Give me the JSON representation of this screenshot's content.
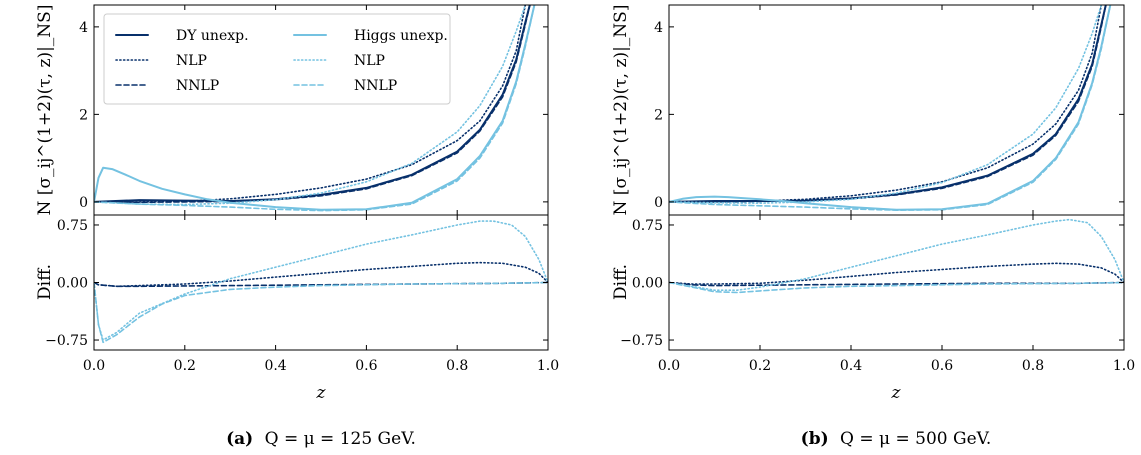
{
  "colors": {
    "dy": "#08306b",
    "higgs": "#74c2e1"
  },
  "legend": {
    "entries": [
      {
        "key": "dy_unexp",
        "label": "DY unexp.",
        "color": "dy",
        "style": "solid"
      },
      {
        "key": "dy_nlp",
        "label": "NLP",
        "color": "dy",
        "style": "dotted"
      },
      {
        "key": "dy_nnlp",
        "label": "NNLP",
        "color": "dy",
        "style": "dashed"
      },
      {
        "key": "h_unexp",
        "label": "Higgs unexp.",
        "color": "higgs",
        "style": "solid"
      },
      {
        "key": "h_nlp",
        "label": "NLP",
        "color": "higgs",
        "style": "dotted"
      },
      {
        "key": "h_nnlp",
        "label": "NNLP",
        "color": "higgs",
        "style": "dashed"
      }
    ],
    "placement": "top-left of panel (a)"
  },
  "chart_data": [
    {
      "panel": "a",
      "caption_label": "(a)",
      "caption_text": "Q = μ = 125 GeV.",
      "type": "line",
      "xlabel": "z",
      "top": {
        "ylabel": "N [σ_ij^(1+2)(τ, z)|_NS]",
        "ylim": [
          -0.3,
          4.5
        ],
        "yticks": [
          "0",
          "2",
          "4"
        ],
        "ytick_values": [
          0,
          2,
          4
        ],
        "series": [
          {
            "key": "dy_unexp",
            "x": [
              0.0,
              0.1,
              0.2,
              0.3,
              0.4,
              0.5,
              0.6,
              0.7,
              0.8,
              0.85,
              0.9,
              0.93,
              0.95,
              0.96
            ],
            "y": [
              0.0,
              0.04,
              0.03,
              0.02,
              0.06,
              0.16,
              0.32,
              0.62,
              1.15,
              1.65,
              2.45,
              3.25,
              4.1,
              4.5
            ]
          },
          {
            "key": "dy_nlp",
            "x": [
              0.0,
              0.1,
              0.2,
              0.3,
              0.4,
              0.5,
              0.6,
              0.7,
              0.8,
              0.85,
              0.9,
              0.93,
              0.95
            ],
            "y": [
              0.0,
              0.0,
              0.01,
              0.07,
              0.17,
              0.32,
              0.52,
              0.85,
              1.4,
              1.85,
              2.65,
              3.45,
              4.5
            ]
          },
          {
            "key": "dy_nnlp",
            "x": [
              0.0,
              0.1,
              0.2,
              0.3,
              0.4,
              0.5,
              0.6,
              0.7,
              0.8,
              0.85,
              0.9,
              0.93,
              0.95,
              0.96
            ],
            "y": [
              0.0,
              -0.01,
              0.0,
              0.01,
              0.05,
              0.14,
              0.3,
              0.6,
              1.12,
              1.62,
              2.4,
              3.2,
              4.05,
              4.5
            ]
          },
          {
            "key": "h_unexp",
            "x": [
              0.0,
              0.01,
              0.02,
              0.04,
              0.07,
              0.1,
              0.15,
              0.2,
              0.25,
              0.3,
              0.4,
              0.5,
              0.6,
              0.7,
              0.8,
              0.85,
              0.9,
              0.93,
              0.95,
              0.97
            ],
            "y": [
              0.0,
              0.55,
              0.78,
              0.75,
              0.62,
              0.48,
              0.3,
              0.17,
              0.06,
              -0.02,
              -0.12,
              -0.18,
              -0.17,
              -0.02,
              0.52,
              1.05,
              1.85,
              2.75,
              3.6,
              4.5
            ]
          },
          {
            "key": "h_nlp",
            "x": [
              0.0,
              0.1,
              0.2,
              0.3,
              0.4,
              0.5,
              0.6,
              0.7,
              0.8,
              0.85,
              0.9,
              0.93,
              0.95
            ],
            "y": [
              0.0,
              -0.05,
              -0.06,
              -0.03,
              0.05,
              0.2,
              0.46,
              0.88,
              1.6,
              2.2,
              3.1,
              3.9,
              4.5
            ]
          },
          {
            "key": "h_nnlp",
            "x": [
              0.0,
              0.1,
              0.2,
              0.3,
              0.4,
              0.5,
              0.6,
              0.7,
              0.8,
              0.85,
              0.9,
              0.93,
              0.95,
              0.97
            ],
            "y": [
              0.0,
              -0.05,
              -0.08,
              -0.12,
              -0.17,
              -0.2,
              -0.18,
              -0.05,
              0.48,
              1.0,
              1.8,
              2.7,
              3.55,
              4.5
            ]
          }
        ]
      },
      "bottom": {
        "ylabel": "Diff.",
        "ylim": [
          -0.88,
          0.88
        ],
        "yticks": [
          "0.75",
          "0.00",
          "−0.75"
        ],
        "ytick_values": [
          0.75,
          0.0,
          -0.75
        ],
        "series": [
          {
            "key": "dy_nlp",
            "x": [
              0.0,
              0.01,
              0.05,
              0.1,
              0.2,
              0.3,
              0.4,
              0.5,
              0.6,
              0.7,
              0.8,
              0.85,
              0.9,
              0.95,
              0.98,
              1.0
            ],
            "y": [
              0.0,
              -0.03,
              -0.05,
              -0.04,
              -0.02,
              0.02,
              0.07,
              0.12,
              0.17,
              0.21,
              0.25,
              0.26,
              0.25,
              0.2,
              0.12,
              0.0
            ]
          },
          {
            "key": "dy_nnlp",
            "x": [
              0.0,
              0.01,
              0.05,
              0.1,
              0.3,
              0.5,
              0.7,
              0.9,
              1.0
            ],
            "y": [
              0.0,
              -0.03,
              -0.05,
              -0.05,
              -0.04,
              -0.03,
              -0.02,
              -0.01,
              0.0
            ]
          },
          {
            "key": "h_nlp",
            "x": [
              0.0,
              0.01,
              0.02,
              0.05,
              0.1,
              0.2,
              0.3,
              0.4,
              0.5,
              0.6,
              0.7,
              0.8,
              0.85,
              0.88,
              0.92,
              0.95,
              0.98,
              1.0
            ],
            "y": [
              0.0,
              -0.55,
              -0.75,
              -0.65,
              -0.4,
              -0.15,
              0.05,
              0.2,
              0.35,
              0.5,
              0.62,
              0.75,
              0.8,
              0.8,
              0.75,
              0.6,
              0.3,
              0.0
            ]
          },
          {
            "key": "h_nnlp",
            "x": [
              0.0,
              0.01,
              0.02,
              0.05,
              0.1,
              0.15,
              0.2,
              0.3,
              0.4,
              0.5,
              0.7,
              0.9,
              1.0
            ],
            "y": [
              0.0,
              -0.55,
              -0.78,
              -0.68,
              -0.45,
              -0.28,
              -0.17,
              -0.09,
              -0.06,
              -0.04,
              -0.02,
              -0.01,
              0.0
            ]
          }
        ]
      },
      "xlim": [
        0,
        1
      ],
      "xticks": [
        "0.0",
        "0.2",
        "0.4",
        "0.6",
        "0.8",
        "1.0"
      ],
      "xtick_values": [
        0,
        0.2,
        0.4,
        0.6,
        0.8,
        1.0
      ]
    },
    {
      "panel": "b",
      "caption_label": "(b)",
      "caption_text": "Q = μ = 500 GeV.",
      "type": "line",
      "xlabel": "z",
      "top": {
        "ylabel": "N [σ_ij^(1+2)(τ, z)|_NS]",
        "ylim": [
          -0.3,
          4.5
        ],
        "yticks": [
          "0",
          "2",
          "4"
        ],
        "ytick_values": [
          0,
          2,
          4
        ],
        "series": [
          {
            "key": "dy_unexp",
            "x": [
              0.0,
              0.1,
              0.2,
              0.3,
              0.4,
              0.5,
              0.6,
              0.7,
              0.8,
              0.85,
              0.9,
              0.93,
              0.95,
              0.96
            ],
            "y": [
              0.0,
              0.02,
              0.02,
              0.03,
              0.08,
              0.17,
              0.33,
              0.6,
              1.1,
              1.55,
              2.35,
              3.15,
              4.05,
              4.5
            ]
          },
          {
            "key": "dy_nlp",
            "x": [
              0.0,
              0.1,
              0.2,
              0.3,
              0.4,
              0.5,
              0.6,
              0.7,
              0.8,
              0.85,
              0.9,
              0.93,
              0.95
            ],
            "y": [
              0.0,
              0.0,
              0.02,
              0.06,
              0.14,
              0.27,
              0.46,
              0.78,
              1.32,
              1.78,
              2.55,
              3.4,
              4.5
            ]
          },
          {
            "key": "dy_nnlp",
            "x": [
              0.0,
              0.1,
              0.2,
              0.3,
              0.4,
              0.5,
              0.6,
              0.7,
              0.8,
              0.85,
              0.9,
              0.93,
              0.95,
              0.96
            ],
            "y": [
              0.0,
              0.0,
              0.01,
              0.03,
              0.07,
              0.16,
              0.31,
              0.58,
              1.07,
              1.52,
              2.3,
              3.1,
              4.0,
              4.5
            ]
          },
          {
            "key": "h_unexp",
            "x": [
              0.0,
              0.03,
              0.06,
              0.1,
              0.13,
              0.17,
              0.2,
              0.25,
              0.3,
              0.4,
              0.5,
              0.6,
              0.7,
              0.8,
              0.85,
              0.9,
              0.93,
              0.95,
              0.97
            ],
            "y": [
              0.0,
              0.07,
              0.11,
              0.12,
              0.11,
              0.08,
              0.06,
              0.02,
              -0.03,
              -0.12,
              -0.18,
              -0.17,
              -0.04,
              0.48,
              1.0,
              1.82,
              2.72,
              3.55,
              4.5
            ]
          },
          {
            "key": "h_nlp",
            "x": [
              0.0,
              0.1,
              0.2,
              0.3,
              0.4,
              0.5,
              0.6,
              0.7,
              0.8,
              0.85,
              0.9,
              0.93,
              0.95
            ],
            "y": [
              0.0,
              -0.02,
              -0.03,
              0.0,
              0.06,
              0.2,
              0.44,
              0.85,
              1.55,
              2.15,
              3.05,
              3.85,
              4.5
            ]
          },
          {
            "key": "h_nnlp",
            "x": [
              0.0,
              0.1,
              0.2,
              0.3,
              0.4,
              0.5,
              0.6,
              0.7,
              0.8,
              0.85,
              0.9,
              0.93,
              0.95,
              0.97
            ],
            "y": [
              0.0,
              -0.06,
              -0.09,
              -0.12,
              -0.16,
              -0.19,
              -0.18,
              -0.06,
              0.45,
              0.97,
              1.78,
              2.68,
              3.5,
              4.5
            ]
          }
        ]
      },
      "bottom": {
        "ylabel": "Diff.",
        "ylim": [
          -0.88,
          0.88
        ],
        "yticks": [
          "0.75",
          "0.00",
          "−0.75"
        ],
        "ytick_values": [
          0.75,
          0.0,
          -0.75
        ],
        "series": [
          {
            "key": "dy_nlp",
            "x": [
              0.0,
              0.05,
              0.1,
              0.2,
              0.3,
              0.4,
              0.5,
              0.6,
              0.7,
              0.8,
              0.85,
              0.9,
              0.95,
              0.98,
              1.0
            ],
            "y": [
              0.0,
              -0.02,
              -0.02,
              -0.01,
              0.03,
              0.08,
              0.13,
              0.17,
              0.21,
              0.24,
              0.25,
              0.24,
              0.19,
              0.11,
              0.0
            ]
          },
          {
            "key": "dy_nnlp",
            "x": [
              0.0,
              0.05,
              0.1,
              0.3,
              0.5,
              0.7,
              0.9,
              1.0
            ],
            "y": [
              0.0,
              -0.03,
              -0.04,
              -0.03,
              -0.02,
              -0.01,
              -0.01,
              0.0
            ]
          },
          {
            "key": "h_nlp",
            "x": [
              0.0,
              0.05,
              0.1,
              0.15,
              0.2,
              0.3,
              0.4,
              0.5,
              0.6,
              0.7,
              0.8,
              0.85,
              0.88,
              0.92,
              0.95,
              0.98,
              1.0
            ],
            "y": [
              0.0,
              -0.05,
              -0.1,
              -0.1,
              -0.06,
              0.05,
              0.2,
              0.35,
              0.5,
              0.62,
              0.75,
              0.8,
              0.82,
              0.78,
              0.6,
              0.3,
              0.0
            ]
          },
          {
            "key": "h_nnlp",
            "x": [
              0.0,
              0.05,
              0.1,
              0.15,
              0.2,
              0.3,
              0.4,
              0.5,
              0.7,
              0.9,
              1.0
            ],
            "y": [
              0.0,
              -0.06,
              -0.12,
              -0.13,
              -0.11,
              -0.07,
              -0.05,
              -0.04,
              -0.02,
              -0.01,
              0.0
            ]
          }
        ]
      },
      "xlim": [
        0,
        1
      ],
      "xticks": [
        "0.0",
        "0.2",
        "0.4",
        "0.6",
        "0.8",
        "1.0"
      ],
      "xtick_values": [
        0,
        0.2,
        0.4,
        0.6,
        0.8,
        1.0
      ]
    }
  ]
}
